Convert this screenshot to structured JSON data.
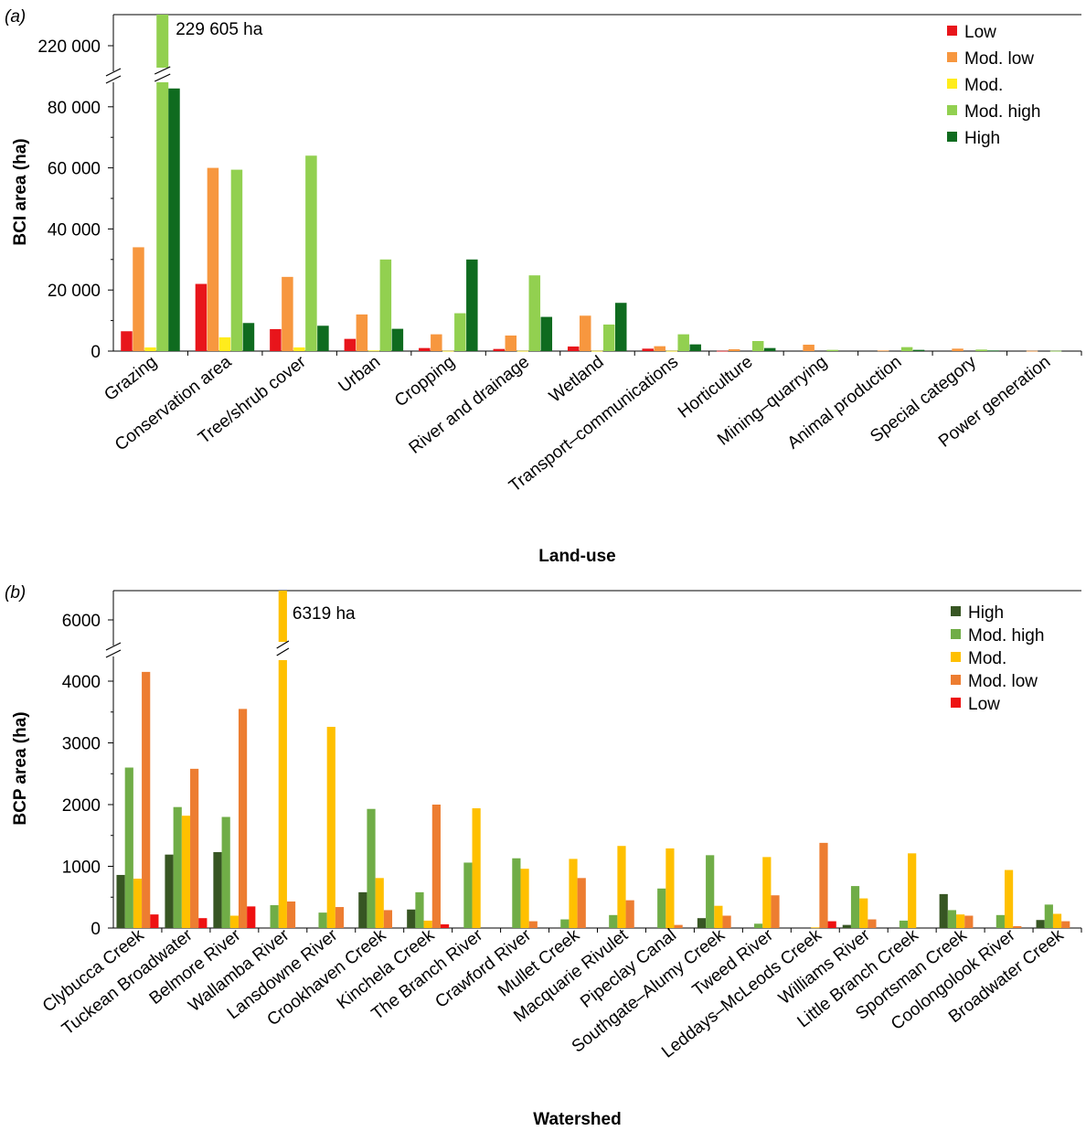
{
  "colors": {
    "Low": "#e8151b",
    "Mod. low": "#f7973f",
    "Mod.": "#ffec1c",
    "Mod. high": "#92d050",
    "High": "#0f6b1f",
    "High_b": "#375623",
    "Mod. high_b": "#70ad47",
    "Mod._b": "#ffc000",
    "Mod. low_b": "#ed7d31",
    "Low_b": "#ee1111"
  },
  "chart_data": [
    {
      "panel_label": "(a)",
      "type": "bar",
      "ylabel": "BCI area (ha)",
      "xlabel": "Land-use",
      "ylim": [
        0,
        90000
      ],
      "y_break": true,
      "break_ticks": [
        "220 000"
      ],
      "yticks": [
        0,
        20000,
        40000,
        60000,
        80000
      ],
      "ytick_labels": [
        "0",
        "20 000",
        "40 000",
        "60 000",
        "80 000"
      ],
      "legend_position": "top-right",
      "annotation": "229 605 ha",
      "categories": [
        "Grazing",
        "Conservation area",
        "Tree/shrub cover",
        "Urban",
        "Cropping",
        "River and drainage",
        "Wetland",
        "Transport–communications",
        "Horticulture",
        "Mining–quarrying",
        "Animal production",
        "Special category",
        "Power generation"
      ],
      "series": [
        {
          "name": "Low",
          "color_key": "Low",
          "values": [
            6500,
            22000,
            7200,
            4000,
            1000,
            700,
            1500,
            800,
            100,
            0,
            0,
            0,
            0
          ]
        },
        {
          "name": "Mod. low",
          "color_key": "Mod. low",
          "values": [
            34000,
            60000,
            24300,
            12000,
            5500,
            5100,
            11600,
            1600,
            600,
            2100,
            200,
            800,
            100
          ]
        },
        {
          "name": "Mod.",
          "color_key": "Mod.",
          "values": [
            1200,
            4500,
            1200,
            200,
            100,
            100,
            100,
            100,
            0,
            0,
            0,
            0,
            0
          ]
        },
        {
          "name": "Mod. high",
          "color_key": "Mod. high",
          "values": [
            229605,
            59400,
            64000,
            30000,
            12400,
            24800,
            8700,
            5500,
            3300,
            400,
            1300,
            500,
            100
          ]
        },
        {
          "name": "High",
          "color_key": "High",
          "values": [
            86000,
            9200,
            8300,
            7300,
            30000,
            11200,
            15800,
            2200,
            1000,
            0,
            400,
            200,
            0
          ]
        }
      ]
    },
    {
      "panel_label": "(b)",
      "type": "bar",
      "ylabel": "BCP area (ha)",
      "xlabel": "Watershed",
      "ylim": [
        0,
        4400
      ],
      "y_break": true,
      "break_ticks": [
        "6000"
      ],
      "yticks": [
        0,
        1000,
        2000,
        3000,
        4000
      ],
      "ytick_labels": [
        "0",
        "1000",
        "2000",
        "3000",
        "4000"
      ],
      "legend_position": "top-right",
      "annotation": "6319 ha",
      "categories": [
        "Clybucca Creek",
        "Tuckean Broadwater",
        "Belmore River",
        "Wallamba River",
        "Lansdowne River",
        "Crookhaven Creek",
        "Kinchela Creek",
        "The Branch River",
        "Crawford River",
        "Mullet Creek",
        "Macquarie Rivulet",
        "Pipeclay Canal",
        "Southgate–Alumy Creek",
        "Tweed River",
        "Leddays–McLeods Creek",
        "Williams River",
        "Little Branch Creek",
        "Sportsman Creek",
        "Coolongolook River",
        "Broadwater Creek"
      ],
      "series": [
        {
          "name": "High",
          "color_key": "High_b",
          "values": [
            860,
            1190,
            1230,
            0,
            0,
            580,
            300,
            0,
            0,
            0,
            0,
            0,
            160,
            0,
            0,
            50,
            0,
            550,
            0,
            130
          ]
        },
        {
          "name": "Mod. high",
          "color_key": "Mod. high_b",
          "values": [
            2600,
            1960,
            1800,
            370,
            250,
            1930,
            580,
            1060,
            1130,
            140,
            210,
            640,
            1180,
            70,
            0,
            680,
            120,
            290,
            210,
            380
          ]
        },
        {
          "name": "Mod.",
          "color_key": "Mod._b",
          "values": [
            800,
            1820,
            200,
            6319,
            3260,
            810,
            120,
            1940,
            960,
            1120,
            1330,
            1290,
            360,
            1150,
            10,
            480,
            1210,
            220,
            940,
            230
          ]
        },
        {
          "name": "Mod. low",
          "color_key": "Mod. low_b",
          "values": [
            4150,
            2580,
            3550,
            430,
            340,
            290,
            2000,
            0,
            110,
            810,
            450,
            50,
            200,
            530,
            1380,
            140,
            0,
            200,
            30,
            110
          ]
        },
        {
          "name": "Low",
          "color_key": "Low_b",
          "values": [
            220,
            160,
            350,
            0,
            0,
            0,
            60,
            0,
            0,
            0,
            0,
            0,
            0,
            0,
            110,
            0,
            0,
            0,
            0,
            0
          ]
        }
      ]
    }
  ]
}
